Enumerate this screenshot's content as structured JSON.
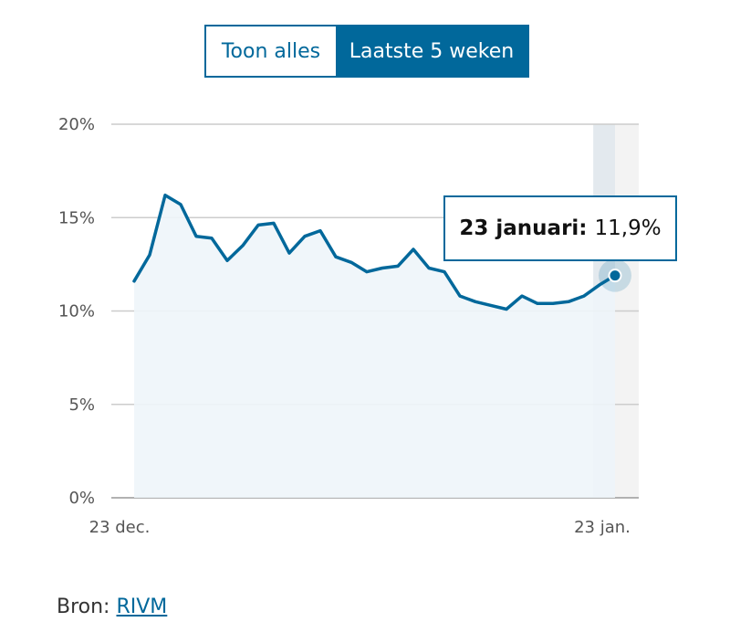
{
  "toggle": {
    "options": [
      "Toon alles",
      "Laatste 5 weken"
    ],
    "selected": "Laatste 5 weken"
  },
  "tooltip": {
    "date": "23 januari:",
    "value": "11,9%"
  },
  "source": {
    "label": "Bron:",
    "link_text": "RIVM"
  },
  "colors": {
    "accent": "#01689b",
    "area_fill": "#eef5fa",
    "highlight_band": "#f3f3f3",
    "grid": "#cccccc"
  },
  "chart_data": {
    "type": "area",
    "title": "",
    "xlabel": "",
    "ylabel": "",
    "ylim": [
      0,
      20
    ],
    "yticks": [
      0,
      5,
      10,
      15,
      20
    ],
    "ytick_labels": [
      "0%",
      "5%",
      "10%",
      "15%",
      "20%"
    ],
    "xtick_labels": [
      "23 dec.",
      "23 jan."
    ],
    "x": [
      "2020-12-23",
      "2020-12-24",
      "2020-12-25",
      "2020-12-26",
      "2020-12-27",
      "2020-12-28",
      "2020-12-29",
      "2020-12-30",
      "2020-12-31",
      "2021-01-01",
      "2021-01-02",
      "2021-01-03",
      "2021-01-04",
      "2021-01-05",
      "2021-01-06",
      "2021-01-07",
      "2021-01-08",
      "2021-01-09",
      "2021-01-10",
      "2021-01-11",
      "2021-01-12",
      "2021-01-13",
      "2021-01-14",
      "2021-01-15",
      "2021-01-16",
      "2021-01-17",
      "2021-01-18",
      "2021-01-19",
      "2021-01-20",
      "2021-01-21",
      "2021-01-22",
      "2021-01-23"
    ],
    "series": [
      {
        "values": [
          11.6,
          13.0,
          16.2,
          15.7,
          14.0,
          13.9,
          12.7,
          13.5,
          14.6,
          14.7,
          13.1,
          14.0,
          14.3,
          12.9,
          12.6,
          12.1,
          12.3,
          12.4,
          13.3,
          12.3,
          12.1,
          10.8,
          10.5,
          10.3,
          10.1,
          10.8,
          10.4,
          10.4,
          10.5,
          10.8,
          11.4,
          11.9
        ]
      }
    ],
    "highlighted_point": "2021-01-23",
    "grid": true
  }
}
